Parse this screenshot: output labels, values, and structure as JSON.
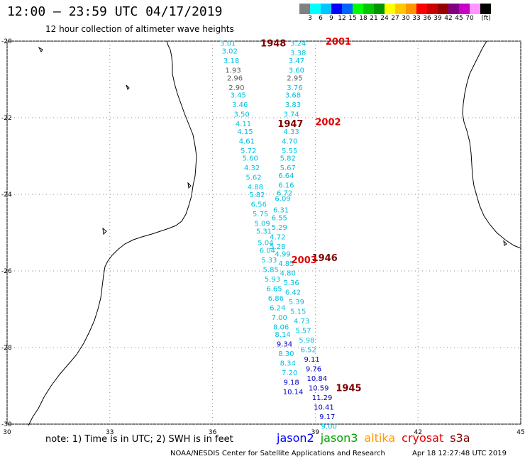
{
  "header": {
    "title": "12:00 — 23:59 UTC 04/17/2019",
    "subtitle": "12 hour collection of altimeter wave heights"
  },
  "colorbar": {
    "colors": [
      "#808080",
      "#00ffff",
      "#00c8ff",
      "#0000ff",
      "#0064ff",
      "#00ff00",
      "#00c800",
      "#009600",
      "#ffff00",
      "#ffc800",
      "#ff9600",
      "#ff0000",
      "#c80000",
      "#960000",
      "#800080",
      "#c800c8",
      "#ff96ff",
      "#000000"
    ],
    "labels": [
      "3",
      "6",
      "9",
      "12",
      "15",
      "18",
      "21",
      "24",
      "27",
      "30",
      "33",
      "36",
      "39",
      "42",
      "45",
      "70",
      "(ft)"
    ]
  },
  "map": {
    "lon_range": [
      30,
      45
    ],
    "lat_range": [
      -30,
      -20
    ],
    "lon_ticks": [
      "30",
      "33",
      "36",
      "39",
      "42",
      "45"
    ],
    "lat_ticks": [
      "-20",
      "-22",
      "-24",
      "-26",
      "-28",
      "-30"
    ],
    "colors": {
      "gray": "#606060",
      "cyan": "#00c0e0",
      "blue": "#0000c0",
      "darkred": "#800000",
      "red": "#e00000"
    },
    "passes": [
      {
        "label": "1948",
        "lon": 37.4,
        "lat": -20.05,
        "color_key": "darkred"
      },
      {
        "label": "2001",
        "lon": 39.3,
        "lat": -20.0,
        "color_key": "red"
      },
      {
        "label": "1947",
        "lon": 37.9,
        "lat": -22.15,
        "color_key": "darkred"
      },
      {
        "label": "2002",
        "lon": 39.0,
        "lat": -22.1,
        "color_key": "red"
      },
      {
        "label": "1946",
        "lon": 38.9,
        "lat": -25.65,
        "color_key": "darkred"
      },
      {
        "label": "2003",
        "lon": 38.3,
        "lat": -25.7,
        "color_key": "red"
      },
      {
        "label": "1945",
        "lon": 39.6,
        "lat": -29.05,
        "color_key": "darkred"
      }
    ],
    "tracks": [
      {
        "name": "track-west",
        "points": [
          {
            "lon": 36.45,
            "lat": -20.05,
            "value": "3.01",
            "color_key": "cyan"
          },
          {
            "lon": 36.5,
            "lat": -20.25,
            "value": "3.02",
            "color_key": "cyan"
          },
          {
            "lon": 36.55,
            "lat": -20.5,
            "value": "3.18",
            "color_key": "cyan"
          },
          {
            "lon": 36.6,
            "lat": -20.75,
            "value": "1.93",
            "color_key": "gray"
          },
          {
            "lon": 36.65,
            "lat": -20.95,
            "value": "2.96",
            "color_key": "gray"
          },
          {
            "lon": 36.7,
            "lat": -21.2,
            "value": "2.90",
            "color_key": "gray"
          },
          {
            "lon": 36.75,
            "lat": -21.4,
            "value": "3.45",
            "color_key": "cyan"
          },
          {
            "lon": 36.8,
            "lat": -21.65,
            "value": "3.46",
            "color_key": "cyan"
          },
          {
            "lon": 36.85,
            "lat": -21.9,
            "value": "3.50",
            "color_key": "cyan"
          },
          {
            "lon": 36.9,
            "lat": -22.15,
            "value": "4.11",
            "color_key": "cyan"
          },
          {
            "lon": 36.95,
            "lat": -22.35,
            "value": "4.15",
            "color_key": "cyan"
          },
          {
            "lon": 37.0,
            "lat": -22.6,
            "value": "4.61",
            "color_key": "cyan"
          },
          {
            "lon": 37.05,
            "lat": -22.85,
            "value": "5.72",
            "color_key": "cyan"
          },
          {
            "lon": 37.1,
            "lat": -23.05,
            "value": "5.60",
            "color_key": "cyan"
          },
          {
            "lon": 37.15,
            "lat": -23.3,
            "value": "4.32",
            "color_key": "cyan"
          },
          {
            "lon": 37.2,
            "lat": -23.55,
            "value": "5.62",
            "color_key": "cyan"
          },
          {
            "lon": 37.25,
            "lat": -23.8,
            "value": "4.88",
            "color_key": "cyan"
          },
          {
            "lon": 37.3,
            "lat": -24.0,
            "value": "5.82",
            "color_key": "cyan"
          },
          {
            "lon": 37.35,
            "lat": -24.25,
            "value": "6.56",
            "color_key": "cyan"
          },
          {
            "lon": 37.4,
            "lat": -24.5,
            "value": "5.75",
            "color_key": "cyan"
          },
          {
            "lon": 37.45,
            "lat": -24.75,
            "value": "5.09",
            "color_key": "cyan"
          },
          {
            "lon": 37.5,
            "lat": -24.95,
            "value": "5.31",
            "color_key": "cyan"
          },
          {
            "lon": 37.55,
            "lat": -25.25,
            "value": "5.04",
            "color_key": "cyan"
          },
          {
            "lon": 37.6,
            "lat": -25.45,
            "value": "6.04",
            "color_key": "cyan"
          },
          {
            "lon": 37.65,
            "lat": -25.7,
            "value": "5.33",
            "color_key": "cyan"
          },
          {
            "lon": 37.7,
            "lat": -25.95,
            "value": "5.85",
            "color_key": "cyan"
          },
          {
            "lon": 37.75,
            "lat": -26.2,
            "value": "5.93",
            "color_key": "cyan"
          },
          {
            "lon": 37.8,
            "lat": -26.45,
            "value": "6.65",
            "color_key": "cyan"
          },
          {
            "lon": 37.85,
            "lat": -26.7,
            "value": "6.86",
            "color_key": "cyan"
          },
          {
            "lon": 37.9,
            "lat": -26.95,
            "value": "6.24",
            "color_key": "cyan"
          },
          {
            "lon": 37.95,
            "lat": -27.2,
            "value": "7.00",
            "color_key": "cyan"
          },
          {
            "lon": 38.0,
            "lat": -27.45,
            "value": "8.06",
            "color_key": "cyan"
          },
          {
            "lon": 38.05,
            "lat": -27.65,
            "value": "8.14",
            "color_key": "cyan"
          },
          {
            "lon": 38.1,
            "lat": -27.9,
            "value": "9.34",
            "color_key": "blue"
          },
          {
            "lon": 38.15,
            "lat": -28.15,
            "value": "8.30",
            "color_key": "cyan"
          },
          {
            "lon": 38.2,
            "lat": -28.4,
            "value": "8.34",
            "color_key": "cyan"
          },
          {
            "lon": 38.25,
            "lat": -28.65,
            "value": "7.20",
            "color_key": "cyan"
          },
          {
            "lon": 38.3,
            "lat": -28.9,
            "value": "9.18",
            "color_key": "blue"
          },
          {
            "lon": 38.35,
            "lat": -29.15,
            "value": "10.14",
            "color_key": "blue"
          }
        ]
      },
      {
        "name": "track-east",
        "points": [
          {
            "lon": 38.5,
            "lat": -20.05,
            "value": "3.24",
            "color_key": "cyan"
          },
          {
            "lon": 38.5,
            "lat": -20.3,
            "value": "3.38",
            "color_key": "cyan"
          },
          {
            "lon": 38.45,
            "lat": -20.5,
            "value": "3.47",
            "color_key": "cyan"
          },
          {
            "lon": 38.45,
            "lat": -20.75,
            "value": "3.60",
            "color_key": "cyan"
          },
          {
            "lon": 38.4,
            "lat": -20.95,
            "value": "2.95",
            "color_key": "gray"
          },
          {
            "lon": 38.4,
            "lat": -21.2,
            "value": "3.76",
            "color_key": "cyan"
          },
          {
            "lon": 38.35,
            "lat": -21.4,
            "value": "3.68",
            "color_key": "cyan"
          },
          {
            "lon": 38.35,
            "lat": -21.65,
            "value": "3.83",
            "color_key": "cyan"
          },
          {
            "lon": 38.3,
            "lat": -21.9,
            "value": "3.74",
            "color_key": "cyan"
          },
          {
            "lon": 38.3,
            "lat": -22.35,
            "value": "4.33",
            "color_key": "cyan"
          },
          {
            "lon": 38.25,
            "lat": -22.6,
            "value": "4.70",
            "color_key": "cyan"
          },
          {
            "lon": 38.25,
            "lat": -22.85,
            "value": "5.55",
            "color_key": "cyan"
          },
          {
            "lon": 38.2,
            "lat": -23.05,
            "value": "5.82",
            "color_key": "cyan"
          },
          {
            "lon": 38.2,
            "lat": -23.3,
            "value": "5.67",
            "color_key": "cyan"
          },
          {
            "lon": 38.15,
            "lat": -23.5,
            "value": "6.64",
            "color_key": "cyan"
          },
          {
            "lon": 38.15,
            "lat": -23.75,
            "value": "6.16",
            "color_key": "cyan"
          },
          {
            "lon": 38.1,
            "lat": -23.95,
            "value": "6.72",
            "color_key": "cyan"
          },
          {
            "lon": 38.05,
            "lat": -24.1,
            "value": "6.09",
            "color_key": "cyan"
          },
          {
            "lon": 38.0,
            "lat": -24.4,
            "value": "6.31",
            "color_key": "cyan"
          },
          {
            "lon": 37.95,
            "lat": -24.6,
            "value": "6.55",
            "color_key": "cyan"
          },
          {
            "lon": 37.95,
            "lat": -24.85,
            "value": "5.29",
            "color_key": "cyan"
          },
          {
            "lon": 37.9,
            "lat": -25.1,
            "value": "4.72",
            "color_key": "cyan"
          },
          {
            "lon": 37.9,
            "lat": -25.35,
            "value": "5.28",
            "color_key": "cyan"
          },
          {
            "lon": 38.05,
            "lat": -25.55,
            "value": "4.99",
            "color_key": "cyan"
          },
          {
            "lon": 38.15,
            "lat": -25.8,
            "value": "4.85",
            "color_key": "cyan"
          },
          {
            "lon": 38.2,
            "lat": -26.05,
            "value": "4.80",
            "color_key": "cyan"
          },
          {
            "lon": 38.3,
            "lat": -26.3,
            "value": "5.36",
            "color_key": "cyan"
          },
          {
            "lon": 38.35,
            "lat": -26.55,
            "value": "6.42",
            "color_key": "cyan"
          },
          {
            "lon": 38.45,
            "lat": -26.8,
            "value": "5.39",
            "color_key": "cyan"
          },
          {
            "lon": 38.5,
            "lat": -27.05,
            "value": "5.15",
            "color_key": "cyan"
          },
          {
            "lon": 38.6,
            "lat": -27.3,
            "value": "4.73",
            "color_key": "cyan"
          },
          {
            "lon": 38.65,
            "lat": -27.55,
            "value": "5.57",
            "color_key": "cyan"
          },
          {
            "lon": 38.75,
            "lat": -27.8,
            "value": "5.98",
            "color_key": "cyan"
          },
          {
            "lon": 38.8,
            "lat": -28.05,
            "value": "6.52",
            "color_key": "cyan"
          },
          {
            "lon": 38.9,
            "lat": -28.3,
            "value": "9.11",
            "color_key": "blue"
          },
          {
            "lon": 38.95,
            "lat": -28.55,
            "value": "9.76",
            "color_key": "blue"
          },
          {
            "lon": 39.05,
            "lat": -28.8,
            "value": "10.84",
            "color_key": "blue"
          },
          {
            "lon": 39.1,
            "lat": -29.05,
            "value": "10.59",
            "color_key": "blue"
          },
          {
            "lon": 39.2,
            "lat": -29.3,
            "value": "11.29",
            "color_key": "blue"
          },
          {
            "lon": 39.25,
            "lat": -29.55,
            "value": "10.41",
            "color_key": "blue"
          },
          {
            "lon": 39.35,
            "lat": -29.8,
            "value": "9.17",
            "color_key": "blue"
          },
          {
            "lon": 39.4,
            "lat": -30.05,
            "value": "9.00",
            "color_key": "cyan"
          }
        ]
      }
    ]
  },
  "footer": {
    "note": "note: 1) Time is in UTC; 2) SWH is in feet",
    "satellites": [
      {
        "name": "jason2",
        "color": "#0000ff"
      },
      {
        "name": "jason3",
        "color": "#00a000"
      },
      {
        "name": "altika",
        "color": "#ff9900"
      },
      {
        "name": "cryosat",
        "color": "#e00000"
      },
      {
        "name": "s3a",
        "color": "#800000"
      }
    ],
    "credit": "NOAA/NESDIS Center for Satellite Applications and Research",
    "timestamp": "Apr 18 12:27:48 UTC 2019"
  }
}
